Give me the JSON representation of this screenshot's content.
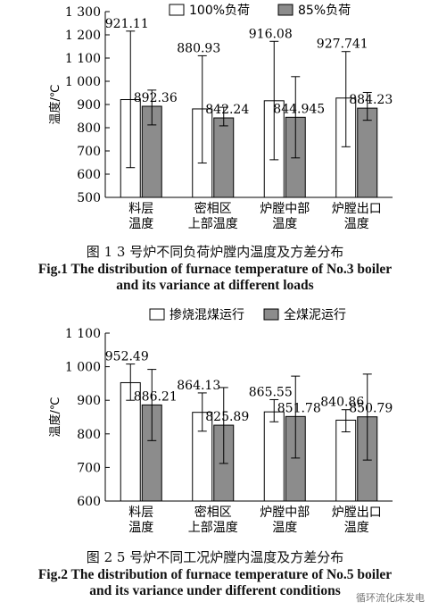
{
  "chart_data": [
    {
      "type": "bar",
      "ylabel": "温度/℃",
      "ylim": [
        500,
        1300
      ],
      "yticks": [
        "500",
        "600",
        "700",
        "800",
        "900",
        "1 000",
        "1 100",
        "1 200",
        "1 300"
      ],
      "tick_values": [
        500,
        600,
        700,
        800,
        900,
        1000,
        1100,
        1200,
        1300
      ],
      "categories": [
        [
          "料层",
          "温度"
        ],
        [
          "密相区",
          "上部温度"
        ],
        [
          "炉膛中部",
          "温度"
        ],
        [
          "炉膛出口",
          "温度"
        ]
      ],
      "series": [
        {
          "name": "100%负荷",
          "color": "#ffffff",
          "values": [
            921.11,
            880.93,
            916.08,
            927.741
          ],
          "labels": [
            "921.11",
            "880.93",
            "916.08",
            "927.741"
          ],
          "err_low": [
            628,
            648,
            662,
            718
          ],
          "err_high": [
            1216,
            1110,
            1172,
            1128
          ]
        },
        {
          "name": "85%负荷",
          "color": "#8c8c8c",
          "values": [
            892.36,
            842.24,
            844.945,
            884.23
          ],
          "labels": [
            "892.36",
            "842.24",
            "844.945",
            "884.23"
          ],
          "err_low": [
            812,
            808,
            670,
            832
          ],
          "err_high": [
            962,
            888,
            1020,
            952
          ]
        }
      ],
      "caption_zh": "图 1 3 号炉不同负荷炉膛内温度及方差分布",
      "caption_en_1": "Fig.1 The distribution of furnace temperature of No.3 boiler",
      "caption_en_2": "and its variance at different loads"
    },
    {
      "type": "bar",
      "ylabel": "温度/℃",
      "ylim": [
        600,
        1100
      ],
      "yticks": [
        "600",
        "700",
        "800",
        "900",
        "1 000",
        "1 100"
      ],
      "tick_values": [
        600,
        700,
        800,
        900,
        1000,
        1100
      ],
      "categories": [
        [
          "料层",
          "温度"
        ],
        [
          "密相区",
          "上部温度"
        ],
        [
          "炉膛中部",
          "温度"
        ],
        [
          "炉膛出口",
          "温度"
        ]
      ],
      "series": [
        {
          "name": "掺烧混煤运行",
          "color": "#ffffff",
          "values": [
            952.49,
            864.13,
            865.55,
            840.86
          ],
          "labels": [
            "952.49",
            "864.13",
            "865.55",
            "840.86"
          ],
          "err_low": [
            900,
            808,
            836,
            806
          ],
          "err_high": [
            1008,
            922,
            902,
            872
          ]
        },
        {
          "name": "全煤泥运行",
          "color": "#8c8c8c",
          "values": [
            886.21,
            825.89,
            851.78,
            850.79
          ],
          "labels": [
            "886.21",
            "825.89",
            "851.78",
            "850.79"
          ],
          "err_low": [
            780,
            712,
            728,
            722
          ],
          "err_high": [
            992,
            938,
            972,
            978
          ]
        }
      ],
      "caption_zh": "图 2 5 号炉不同工况炉膛内温度及方差分布",
      "caption_en_1": "Fig.2 The distribution of furnace temperature of No.5 boiler",
      "caption_en_2": "and its variance under different conditions"
    }
  ],
  "watermark": "循环流化床发电"
}
